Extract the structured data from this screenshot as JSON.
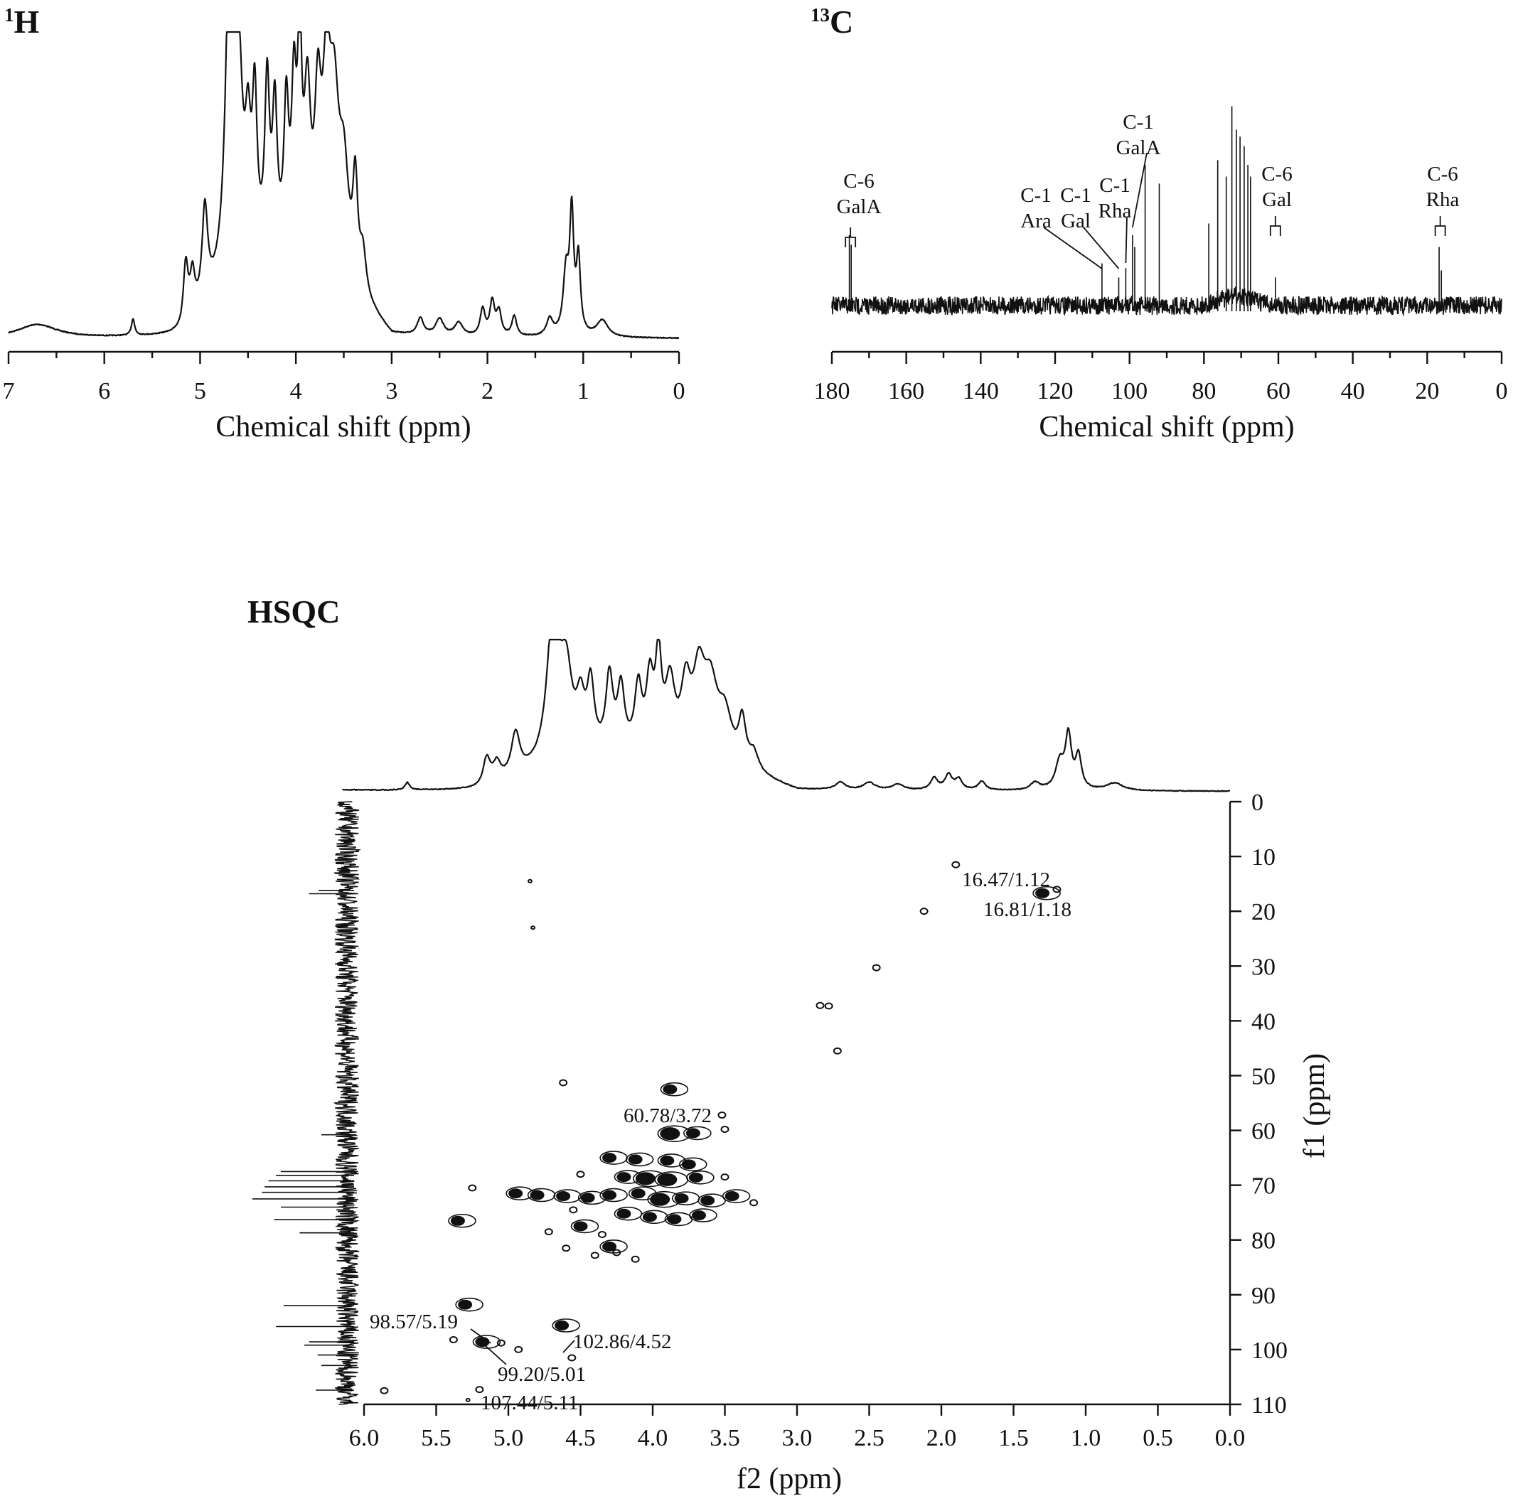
{
  "chart_data": [
    {
      "id": "h1",
      "type": "line",
      "title": "1H",
      "title_sup": "1",
      "title_main": "H",
      "xlabel": "Chemical shift (ppm)",
      "ylabel": "",
      "xlim": [
        7,
        0
      ],
      "x_reversed": true,
      "xticks": [
        7,
        6,
        5,
        4,
        3,
        2,
        1,
        0
      ],
      "peaks": [
        {
          "x": 6.7,
          "h": 0.04,
          "w": 0.25
        },
        {
          "x": 5.7,
          "h": 0.05,
          "w": 0.02
        },
        {
          "x": 5.15,
          "h": 0.18,
          "w": 0.03
        },
        {
          "x": 5.08,
          "h": 0.12,
          "w": 0.03
        },
        {
          "x": 4.95,
          "h": 0.28,
          "w": 0.035
        },
        {
          "x": 4.69,
          "h": 1.0,
          "w": 0.05
        },
        {
          "x": 4.6,
          "h": 0.55,
          "w": 0.05
        },
        {
          "x": 4.5,
          "h": 0.32,
          "w": 0.035
        },
        {
          "x": 4.43,
          "h": 0.45,
          "w": 0.03
        },
        {
          "x": 4.3,
          "h": 0.5,
          "w": 0.03
        },
        {
          "x": 4.22,
          "h": 0.42,
          "w": 0.03
        },
        {
          "x": 4.1,
          "h": 0.42,
          "w": 0.03
        },
        {
          "x": 4.02,
          "h": 0.45,
          "w": 0.03
        },
        {
          "x": 3.96,
          "h": 0.6,
          "w": 0.025
        },
        {
          "x": 3.88,
          "h": 0.45,
          "w": 0.04
        },
        {
          "x": 3.77,
          "h": 0.42,
          "w": 0.04
        },
        {
          "x": 3.68,
          "h": 0.5,
          "w": 0.05
        },
        {
          "x": 3.6,
          "h": 0.45,
          "w": 0.06
        },
        {
          "x": 3.5,
          "h": 0.3,
          "w": 0.06
        },
        {
          "x": 3.38,
          "h": 0.3,
          "w": 0.03
        },
        {
          "x": 3.3,
          "h": 0.12,
          "w": 0.04
        },
        {
          "x": 2.7,
          "h": 0.05,
          "w": 0.04
        },
        {
          "x": 2.5,
          "h": 0.05,
          "w": 0.05
        },
        {
          "x": 2.3,
          "h": 0.04,
          "w": 0.05
        },
        {
          "x": 2.05,
          "h": 0.08,
          "w": 0.03
        },
        {
          "x": 1.95,
          "h": 0.1,
          "w": 0.03
        },
        {
          "x": 1.88,
          "h": 0.07,
          "w": 0.03
        },
        {
          "x": 1.72,
          "h": 0.06,
          "w": 0.03
        },
        {
          "x": 1.35,
          "h": 0.05,
          "w": 0.04
        },
        {
          "x": 1.18,
          "h": 0.18,
          "w": 0.035
        },
        {
          "x": 1.12,
          "h": 0.35,
          "w": 0.025
        },
        {
          "x": 1.05,
          "h": 0.22,
          "w": 0.025
        },
        {
          "x": 0.8,
          "h": 0.05,
          "w": 0.07
        }
      ],
      "hump": {
        "from": 5.2,
        "to": 3.0,
        "h": 0.2
      }
    },
    {
      "id": "c13",
      "type": "line",
      "title": "13C",
      "title_sup": "13",
      "title_main": "C",
      "xlabel": "Chemical shift (ppm)",
      "ylabel": "",
      "xlim": [
        180,
        0
      ],
      "x_reversed": true,
      "xticks": [
        180,
        160,
        140,
        120,
        100,
        80,
        60,
        40,
        20,
        0
      ],
      "peaks": [
        {
          "x": 175.3,
          "h": 0.3
        },
        {
          "x": 174.8,
          "h": 0.26
        },
        {
          "x": 107.4,
          "h": 0.18
        },
        {
          "x": 102.9,
          "h": 0.12
        },
        {
          "x": 101.0,
          "h": 0.16
        },
        {
          "x": 99.2,
          "h": 0.3
        },
        {
          "x": 98.6,
          "h": 0.25
        },
        {
          "x": 95.8,
          "h": 0.6
        },
        {
          "x": 92.0,
          "h": 0.52
        },
        {
          "x": 78.7,
          "h": 0.35
        },
        {
          "x": 76.3,
          "h": 0.62
        },
        {
          "x": 74.0,
          "h": 0.55
        },
        {
          "x": 72.5,
          "h": 0.85
        },
        {
          "x": 71.3,
          "h": 0.75
        },
        {
          "x": 70.3,
          "h": 0.72
        },
        {
          "x": 69.2,
          "h": 0.68
        },
        {
          "x": 68.2,
          "h": 0.6
        },
        {
          "x": 67.5,
          "h": 0.55
        },
        {
          "x": 60.8,
          "h": 0.12
        },
        {
          "x": 16.8,
          "h": 0.25
        },
        {
          "x": 16.2,
          "h": 0.15
        }
      ],
      "annotations": [
        {
          "lines": [
            "C-6",
            "GalA"
          ],
          "x": 175.0
        },
        {
          "lines": [
            "C-1",
            "Ara"
          ],
          "x": 107.4
        },
        {
          "lines": [
            "C-1",
            "Gal"
          ],
          "x": 102.9
        },
        {
          "lines": [
            "C-1",
            "Rha"
          ],
          "x": 101.0
        },
        {
          "lines": [
            "C-1",
            "GalA"
          ],
          "x": 99.2
        },
        {
          "lines": [
            "C-6",
            "Gal"
          ],
          "x": 60.8
        },
        {
          "lines": [
            "C-6",
            "Rha"
          ],
          "x": 16.5
        }
      ]
    },
    {
      "id": "hsqc",
      "type": "scatter",
      "title": "HSQC",
      "xlabel": "f2 (ppm)",
      "ylabel": "f1 (ppm)",
      "xlim": [
        6.0,
        0.0
      ],
      "ylim": [
        0,
        110
      ],
      "x_reversed": true,
      "xticks": [
        "6.0",
        "5.5",
        "5.0",
        "4.5",
        "4.0",
        "3.5",
        "3.0",
        "2.5",
        "2.0",
        "1.5",
        "1.0",
        "0.5",
        "0.0"
      ],
      "yticks": [
        0,
        10,
        20,
        30,
        40,
        50,
        60,
        70,
        80,
        90,
        100,
        110
      ],
      "cross_peaks": [
        {
          "label": "16.47/1.12",
          "x": 1.12,
          "y": 16.47
        },
        {
          "label": "16.81/1.18",
          "x": 1.18,
          "y": 16.81
        },
        {
          "label": "60.78/3.72",
          "x": 3.72,
          "y": 60.78
        },
        {
          "label": "98.57/5.19",
          "x": 5.19,
          "y": 98.57
        },
        {
          "label": "99.20/5.01",
          "x": 5.01,
          "y": 99.2
        },
        {
          "label": "102.86/4.52",
          "x": 4.52,
          "y": 102.86
        },
        {
          "label": "107.44/5.11",
          "x": 5.11,
          "y": 107.44
        }
      ],
      "contours": [
        {
          "x": 1.9,
          "y": 11.5,
          "s": 1
        },
        {
          "x": 1.2,
          "y": 16.0,
          "s": 1
        },
        {
          "x": 1.3,
          "y": 16.7,
          "s": 2
        },
        {
          "x": 2.12,
          "y": 20.0,
          "s": 1
        },
        {
          "x": 2.45,
          "y": 30.3,
          "s": 1
        },
        {
          "x": 2.84,
          "y": 37.2,
          "s": 1
        },
        {
          "x": 2.78,
          "y": 37.3,
          "s": 1
        },
        {
          "x": 2.72,
          "y": 45.5,
          "s": 1
        },
        {
          "x": 4.85,
          "y": 14.5,
          "s": 0
        },
        {
          "x": 4.83,
          "y": 23.0,
          "s": 0
        },
        {
          "x": 4.62,
          "y": 51.3,
          "s": 1
        },
        {
          "x": 3.88,
          "y": 52.5,
          "s": 2
        },
        {
          "x": 3.52,
          "y": 57.2,
          "s": 1
        },
        {
          "x": 3.88,
          "y": 60.6,
          "s": 3
        },
        {
          "x": 3.72,
          "y": 60.5,
          "s": 2
        },
        {
          "x": 3.5,
          "y": 59.8,
          "s": 1
        },
        {
          "x": 4.3,
          "y": 65.0,
          "s": 2
        },
        {
          "x": 4.12,
          "y": 65.3,
          "s": 2
        },
        {
          "x": 3.9,
          "y": 65.5,
          "s": 2
        },
        {
          "x": 3.75,
          "y": 66.2,
          "s": 2
        },
        {
          "x": 4.5,
          "y": 68.0,
          "s": 1
        },
        {
          "x": 4.2,
          "y": 68.5,
          "s": 2
        },
        {
          "x": 4.05,
          "y": 68.8,
          "s": 3
        },
        {
          "x": 3.9,
          "y": 69.0,
          "s": 3
        },
        {
          "x": 3.7,
          "y": 68.6,
          "s": 2
        },
        {
          "x": 3.5,
          "y": 68.5,
          "s": 1
        },
        {
          "x": 5.25,
          "y": 70.5,
          "s": 1
        },
        {
          "x": 4.95,
          "y": 71.5,
          "s": 2
        },
        {
          "x": 4.8,
          "y": 71.8,
          "s": 2
        },
        {
          "x": 4.62,
          "y": 72.0,
          "s": 2
        },
        {
          "x": 4.45,
          "y": 72.3,
          "s": 2
        },
        {
          "x": 4.3,
          "y": 71.8,
          "s": 2
        },
        {
          "x": 4.1,
          "y": 71.5,
          "s": 2
        },
        {
          "x": 3.95,
          "y": 72.6,
          "s": 3
        },
        {
          "x": 3.8,
          "y": 72.4,
          "s": 2
        },
        {
          "x": 3.62,
          "y": 72.8,
          "s": 2
        },
        {
          "x": 3.45,
          "y": 72.0,
          "s": 2
        },
        {
          "x": 3.3,
          "y": 73.2,
          "s": 1
        },
        {
          "x": 4.55,
          "y": 74.5,
          "s": 1
        },
        {
          "x": 4.2,
          "y": 75.2,
          "s": 2
        },
        {
          "x": 4.02,
          "y": 75.8,
          "s": 2
        },
        {
          "x": 3.85,
          "y": 76.2,
          "s": 2
        },
        {
          "x": 3.68,
          "y": 75.5,
          "s": 2
        },
        {
          "x": 5.35,
          "y": 76.5,
          "s": 2
        },
        {
          "x": 4.5,
          "y": 77.5,
          "s": 2
        },
        {
          "x": 4.72,
          "y": 78.5,
          "s": 1
        },
        {
          "x": 4.35,
          "y": 79.0,
          "s": 1
        },
        {
          "x": 4.6,
          "y": 81.5,
          "s": 1
        },
        {
          "x": 4.3,
          "y": 81.2,
          "s": 2
        },
        {
          "x": 4.25,
          "y": 82.3,
          "s": 1
        },
        {
          "x": 4.4,
          "y": 82.8,
          "s": 1
        },
        {
          "x": 4.12,
          "y": 83.5,
          "s": 1
        },
        {
          "x": 5.3,
          "y": 91.8,
          "s": 2
        },
        {
          "x": 4.63,
          "y": 95.6,
          "s": 2
        },
        {
          "x": 5.18,
          "y": 98.6,
          "s": 2
        },
        {
          "x": 5.05,
          "y": 98.8,
          "s": 1
        },
        {
          "x": 5.38,
          "y": 98.2,
          "s": 1
        },
        {
          "x": 4.93,
          "y": 100.0,
          "s": 1
        },
        {
          "x": 4.56,
          "y": 101.5,
          "s": 1
        },
        {
          "x": 5.2,
          "y": 107.3,
          "s": 1
        },
        {
          "x": 5.86,
          "y": 107.5,
          "s": 1
        },
        {
          "x": 5.28,
          "y": 109.2,
          "s": 0
        }
      ],
      "h_projection": "1H",
      "c_projection": "13C"
    }
  ]
}
